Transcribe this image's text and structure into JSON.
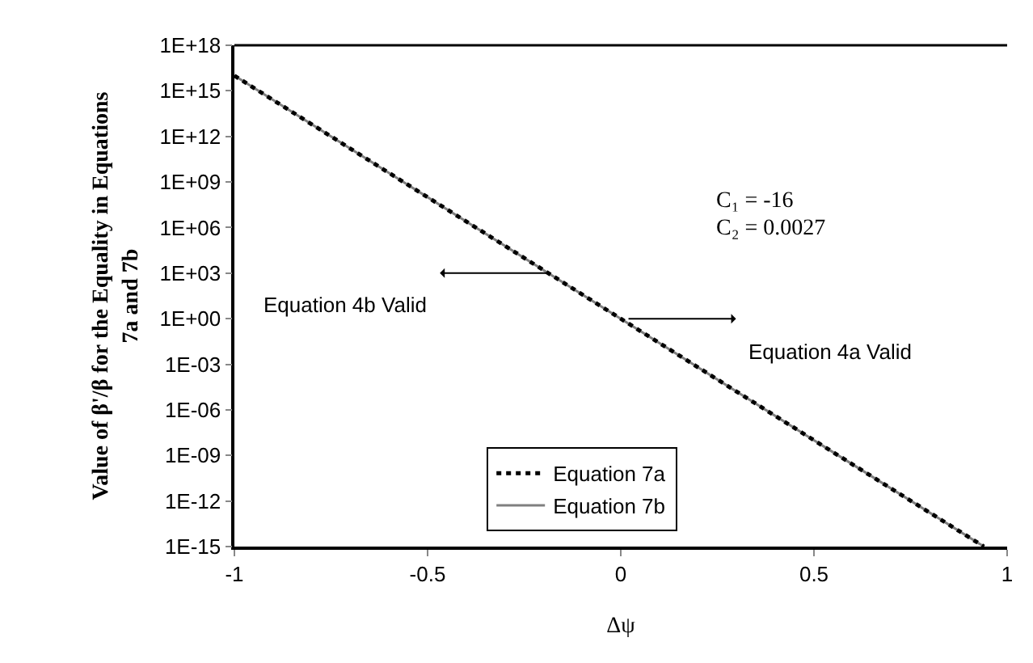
{
  "chart_data": {
    "type": "line",
    "xlabel": "Δψ",
    "ylabel": "Value of β'/β for the Equality in Equations 7a and 7b",
    "log": "y",
    "grid": false,
    "legend": "bottom",
    "marker": "none",
    "xlim": [
      -1,
      1
    ],
    "xticks": [
      -1,
      -0.5,
      0,
      0.5,
      1
    ],
    "ylim": [
      1e-15,
      1e+18
    ],
    "yticks": [
      {
        "value": 1e+18,
        "label": "1E+18"
      },
      {
        "value": 1000000000000000.0,
        "label": "1E+15"
      },
      {
        "value": 1000000000000.0,
        "label": "1E+12"
      },
      {
        "value": 1000000000.0,
        "label": "1E+09"
      },
      {
        "value": 1000000.0,
        "label": "1E+06"
      },
      {
        "value": 1000.0,
        "label": "1E+03"
      },
      {
        "value": 1,
        "label": "1E+00"
      },
      {
        "value": 0.001,
        "label": "1E-03"
      },
      {
        "value": 1e-06,
        "label": "1E-06"
      },
      {
        "value": 1e-09,
        "label": "1E-09"
      },
      {
        "value": 1e-12,
        "label": "1E-12"
      },
      {
        "value": 1e-15,
        "label": "1E-15"
      }
    ],
    "x": [
      -1,
      -0.5,
      0,
      0.5,
      0.94
    ],
    "series": [
      {
        "name": "Equation 7a",
        "color": "#000000",
        "line_style": "dotted",
        "values": [
          1e+16,
          100000000.0,
          1,
          1e-08,
          1e-15
        ]
      },
      {
        "name": "Equation 7b",
        "color": "#808080",
        "line_style": "solid",
        "values": [
          1e+16,
          100000000.0,
          1,
          1e-08,
          1e-15
        ]
      }
    ],
    "annotations": [
      "C₁ = -16",
      "C₂ = 0.0027",
      {
        "text": "Equation 4b Valid",
        "x": -0.19,
        "y": 1000
      },
      {
        "text": "Equation 4a Valid",
        "x": 0.02,
        "y": 1
      }
    ]
  }
}
